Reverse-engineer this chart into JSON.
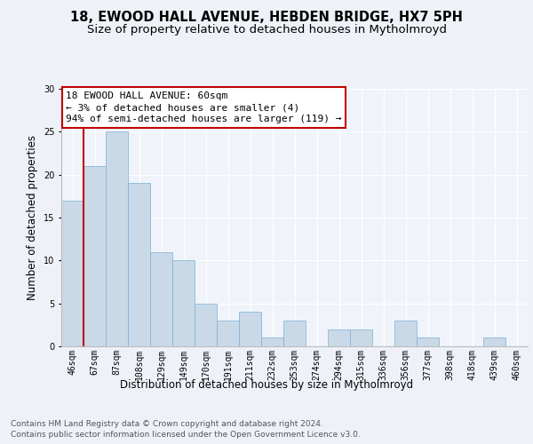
{
  "title_line1": "18, EWOOD HALL AVENUE, HEBDEN BRIDGE, HX7 5PH",
  "title_line2": "Size of property relative to detached houses in Mytholmroyd",
  "xlabel": "Distribution of detached houses by size in Mytholmroyd",
  "ylabel": "Number of detached properties",
  "footer_line1": "Contains HM Land Registry data © Crown copyright and database right 2024.",
  "footer_line2": "Contains public sector information licensed under the Open Government Licence v3.0.",
  "annotation_line1": "18 EWOOD HALL AVENUE: 60sqm",
  "annotation_line2": "← 3% of detached houses are smaller (4)",
  "annotation_line3": "94% of semi-detached houses are larger (119) →",
  "bar_labels": [
    "46sqm",
    "67sqm",
    "87sqm",
    "108sqm",
    "129sqm",
    "149sqm",
    "170sqm",
    "191sqm",
    "211sqm",
    "232sqm",
    "253sqm",
    "274sqm",
    "294sqm",
    "315sqm",
    "336sqm",
    "356sqm",
    "377sqm",
    "398sqm",
    "418sqm",
    "439sqm",
    "460sqm"
  ],
  "bar_values": [
    17,
    21,
    25,
    19,
    11,
    10,
    5,
    3,
    4,
    1,
    3,
    0,
    2,
    2,
    0,
    3,
    1,
    0,
    0,
    1,
    0
  ],
  "bar_color": "#c9d9e8",
  "bar_edge_color": "#7bafd4",
  "vline_x_index": 1,
  "vline_color": "#c00000",
  "annotation_box_edge_color": "#c00000",
  "annotation_box_face_color": "#ffffff",
  "ylim": [
    0,
    30
  ],
  "yticks": [
    0,
    5,
    10,
    15,
    20,
    25,
    30
  ],
  "bg_color": "#eef2f8",
  "plot_bg_color": "#f0f4fa",
  "grid_color": "#ffffff",
  "title_fontsize": 10.5,
  "subtitle_fontsize": 9.5,
  "axis_label_fontsize": 8.5,
  "tick_fontsize": 7,
  "annotation_fontsize": 8,
  "footer_fontsize": 6.5
}
